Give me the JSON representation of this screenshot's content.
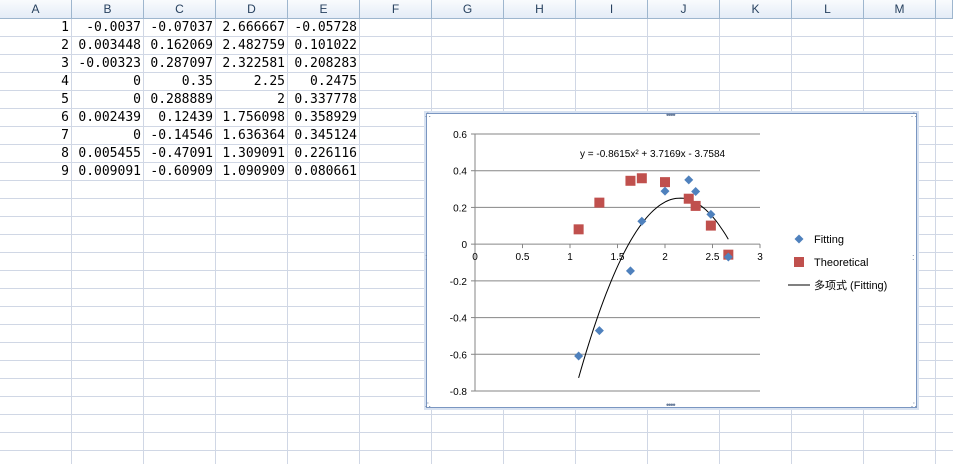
{
  "columns": [
    "A",
    "B",
    "C",
    "D",
    "E",
    "F",
    "G",
    "H",
    "I",
    "J",
    "K",
    "L",
    "M"
  ],
  "rows": [
    [
      "1",
      "-0.0037",
      "-0.07037",
      "2.666667",
      "-0.05728"
    ],
    [
      "2",
      "0.003448",
      "0.162069",
      "2.482759",
      "0.101022"
    ],
    [
      "3",
      "-0.00323",
      "0.287097",
      "2.322581",
      "0.208283"
    ],
    [
      "4",
      "0",
      "0.35",
      "2.25",
      "0.2475"
    ],
    [
      "5",
      "0",
      "0.288889",
      "2",
      "0.337778"
    ],
    [
      "6",
      "0.002439",
      "0.12439",
      "1.756098",
      "0.358929"
    ],
    [
      "7",
      "0",
      "-0.14546",
      "1.636364",
      "0.345124"
    ],
    [
      "8",
      "0.005455",
      "-0.47091",
      "1.309091",
      "0.226116"
    ],
    [
      "9",
      "0.009091",
      "-0.60909",
      "1.090909",
      "0.080661"
    ]
  ],
  "chart_data": {
    "type": "scatter",
    "title": "",
    "xlabel": "",
    "ylabel": "",
    "xlim": [
      0,
      3
    ],
    "ylim": [
      -0.8,
      0.6
    ],
    "x_ticks": [
      "0",
      "0.5",
      "1",
      "1.5",
      "2",
      "2.5",
      "3"
    ],
    "y_ticks": [
      "0.6",
      "0.4",
      "0.2",
      "0",
      "-0.2",
      "-0.4",
      "-0.6",
      "-0.8"
    ],
    "grid": "horizontal",
    "legend_position": "right",
    "equation": "y = -0.8615x² + 3.7169x - 3.7584",
    "series": [
      {
        "name": "Fitting",
        "marker": "diamond",
        "color": "#4f81bd",
        "points": [
          [
            2.666667,
            -0.07037
          ],
          [
            2.482759,
            0.162069
          ],
          [
            2.322581,
            0.287097
          ],
          [
            2.25,
            0.35
          ],
          [
            2.0,
            0.288889
          ],
          [
            1.756098,
            0.12439
          ],
          [
            1.636364,
            -0.14546
          ],
          [
            1.309091,
            -0.47091
          ],
          [
            1.090909,
            -0.60909
          ]
        ]
      },
      {
        "name": "Theoretical",
        "marker": "square",
        "color": "#c0504d",
        "points": [
          [
            2.666667,
            -0.05728
          ],
          [
            2.482759,
            0.101022
          ],
          [
            2.322581,
            0.208283
          ],
          [
            2.25,
            0.2475
          ],
          [
            2.0,
            0.337778
          ],
          [
            1.756098,
            0.358929
          ],
          [
            1.636364,
            0.345124
          ],
          [
            1.309091,
            0.226116
          ],
          [
            1.090909,
            0.080661
          ]
        ]
      },
      {
        "name": "多项式 (Fitting)",
        "type": "line",
        "color": "#000000",
        "coefficients": [
          -0.8615,
          3.7169,
          -3.7584
        ],
        "x_range": [
          1.090909,
          2.666667
        ]
      }
    ]
  }
}
